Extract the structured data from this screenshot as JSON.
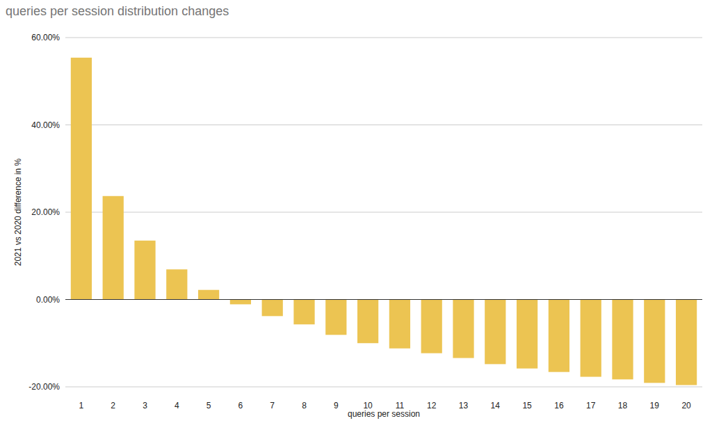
{
  "chart_data": {
    "type": "bar",
    "title": "queries per session distribution changes",
    "x_label": "queries per session",
    "y_label": "2021 vs 2020 difference in %",
    "categories": [
      "1",
      "2",
      "3",
      "4",
      "5",
      "6",
      "7",
      "8",
      "9",
      "10",
      "11",
      "12",
      "13",
      "14",
      "15",
      "16",
      "17",
      "18",
      "19",
      "20"
    ],
    "values": [
      55.4,
      23.7,
      13.5,
      6.9,
      2.2,
      -1.1,
      -3.8,
      -5.7,
      -8.1,
      -10.0,
      -11.2,
      -12.3,
      -13.4,
      -14.8,
      -15.8,
      -16.6,
      -17.7,
      -18.3,
      -19.1,
      -19.6
    ],
    "color": "#ecc452",
    "ylim": [
      -20,
      60
    ],
    "yticks": [
      {
        "value": -20,
        "label": "-20.00%"
      },
      {
        "value": 0,
        "label": "0.00%"
      },
      {
        "value": 20,
        "label": "20.00%"
      },
      {
        "value": 40,
        "label": "40.00%"
      },
      {
        "value": 60,
        "label": "60.00%"
      }
    ],
    "grid": true
  }
}
